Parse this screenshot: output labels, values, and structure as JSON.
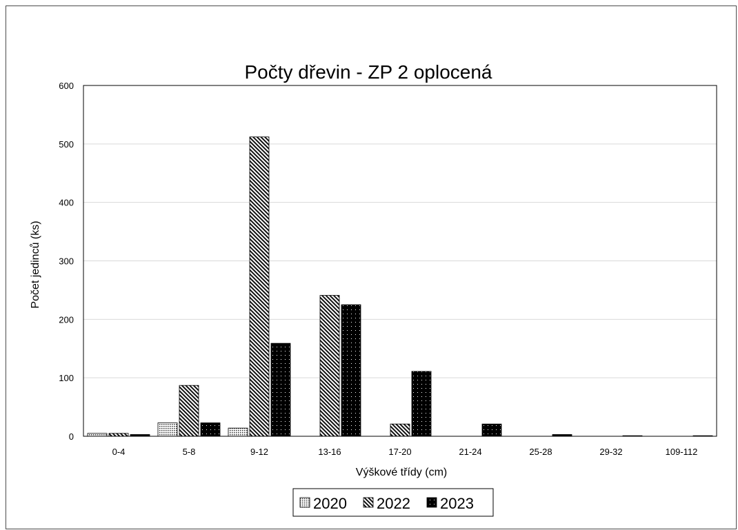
{
  "chart_data": {
    "type": "bar",
    "title": "Počty dřevin - ZP 2 oplocená",
    "xlabel": "Výškové třídy (cm)",
    "ylabel": "Počet jedinců (ks)",
    "ylim": [
      0,
      600
    ],
    "yticks": [
      0,
      100,
      200,
      300,
      400,
      500,
      600
    ],
    "grid": true,
    "legend_position": "bottom",
    "categories": [
      "0-4",
      "5-8",
      "9-12",
      "13-16",
      "17-20",
      "21-24",
      "25-28",
      "29-32",
      "109-112"
    ],
    "series": [
      {
        "name": "2020",
        "pattern": "dots",
        "values": [
          5,
          23,
          14,
          0,
          0,
          0,
          0,
          0,
          0
        ]
      },
      {
        "name": "2022",
        "pattern": "diagonal",
        "values": [
          5,
          87,
          512,
          241,
          21,
          0,
          0,
          0,
          0
        ]
      },
      {
        "name": "2023",
        "pattern": "dark-dots",
        "values": [
          3,
          23,
          159,
          225,
          111,
          21,
          3,
          1,
          1
        ]
      }
    ]
  }
}
